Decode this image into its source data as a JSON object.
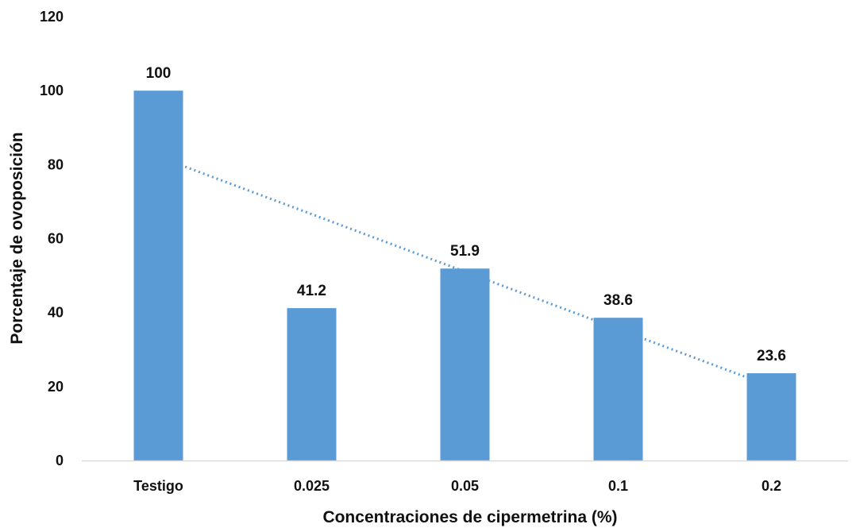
{
  "chart_data": {
    "type": "bar",
    "title": "",
    "xlabel": "Concentraciones de cipermetrina (%)",
    "ylabel": "Porcentaje de ovoposición",
    "categories": [
      "Testigo",
      "0.025",
      "0.05",
      "0.1",
      "0.2"
    ],
    "values": [
      100,
      41.2,
      51.9,
      38.6,
      23.6
    ],
    "data_labels": [
      "100",
      "41.2",
      "51.9",
      "38.6",
      "23.6"
    ],
    "yticks": [
      "0",
      "20",
      "40",
      "60",
      "80",
      "100",
      "120"
    ],
    "ylim": [
      0,
      120
    ],
    "grid": false,
    "legend": "none",
    "trendline": {
      "type": "linear",
      "style": "dotted",
      "color": "#5b9bd5"
    },
    "colors": {
      "bar": "#5b9bd5",
      "axis": "#d9d9d9",
      "text": "#111111"
    }
  }
}
